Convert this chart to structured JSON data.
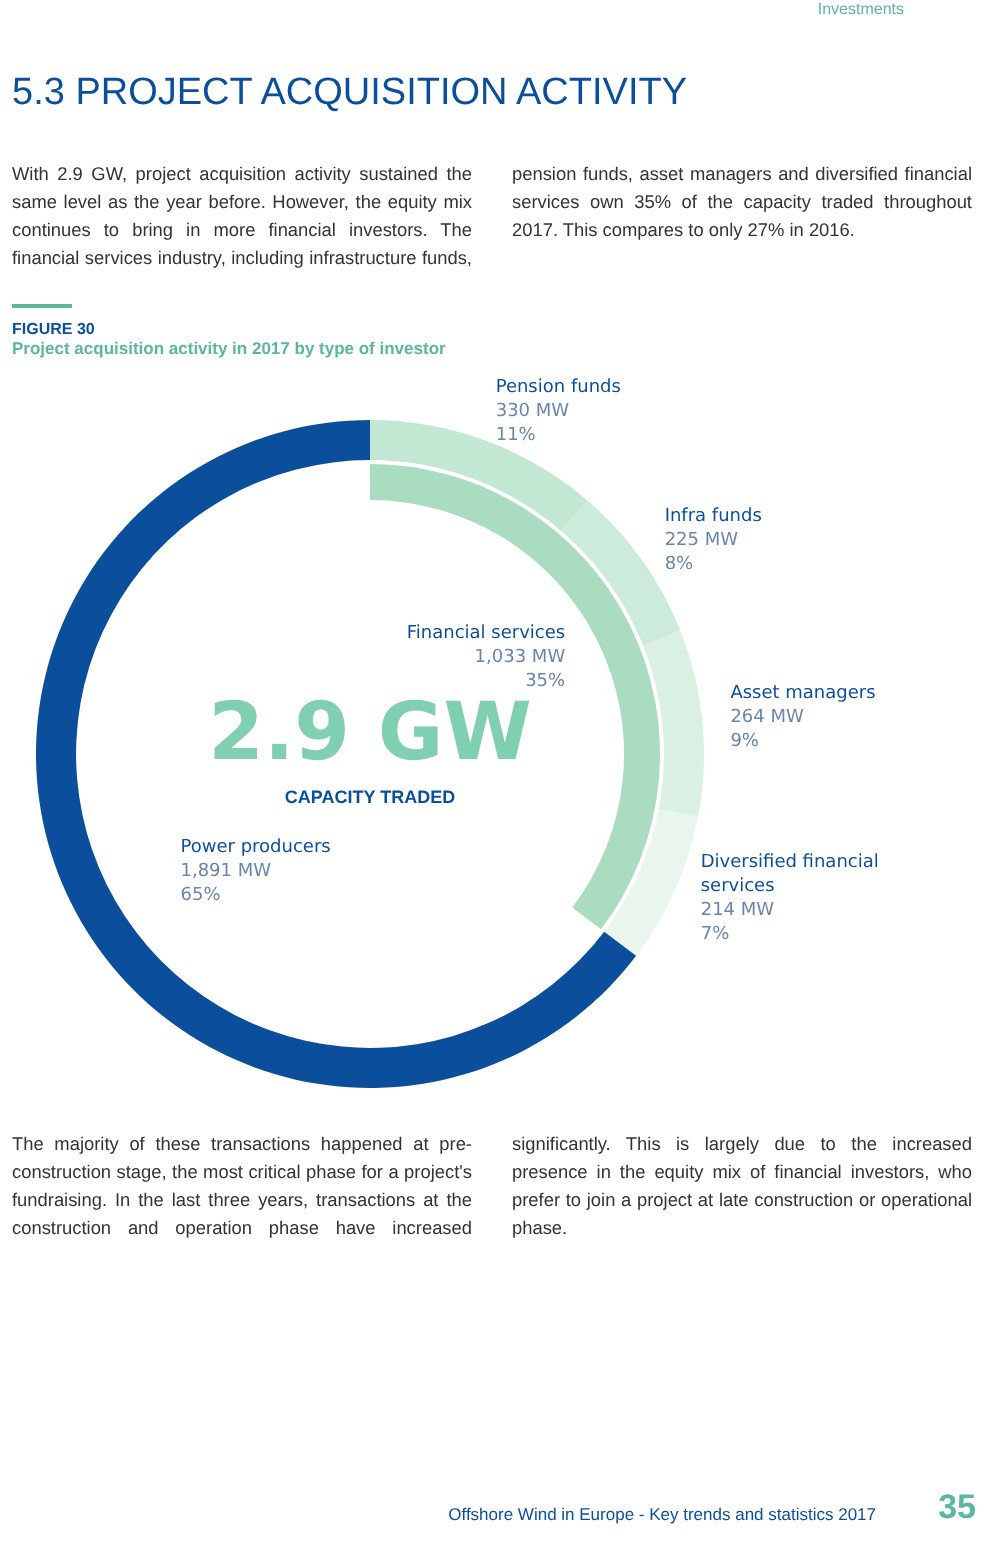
{
  "chart_data": {
    "type": "donut",
    "subtitle": "FIGURE 30",
    "title": "Project acquisition activity in 2017 by type of investor",
    "categories": [
      "Pension funds",
      "Infra funds",
      "Asset managers",
      "Diversified financial services",
      "Power producers"
    ],
    "values": [
      330,
      225,
      264,
      214,
      1891
    ],
    "value_labels": [
      "330 MW\n11%",
      "225 MW\n8%",
      "264 MW\n9%",
      "214 MW\n7%",
      "1,891 MW\n65%"
    ],
    "colors": [
      "#c2e8d3",
      "#cdebdb",
      "#d9f0e3",
      "#e8f6ee",
      "#0b4f9c"
    ],
    "legend": false,
    "annotations": [
      "2.9 GW",
      "CAPACITY TRADED",
      "Financial services",
      "1,033 MW",
      "35%",
      "Investments",
      "5.3 PROJECT ACQUISITION ACTIVITY",
      "With 2.9 GW, project acquisition activity sustained the same level as the year before. However, the equity mix continues to bring in more financial investors. The financial services industry, including infrastructure funds, pension funds, asset managers and diversified financial services own 35% of the capacity traded throughout 2017. This compares to only 27% in 2016.",
      "The majority of these transactions happened at pre-construction stage, the most critical phase for a project's fundraising. In the last three years, transactions at the construction and operation phase have increased significantly. This is largely due to the increased presence in the equity mix of financial investors, who prefer to join a project at late construction or operational phase.",
      "Offshore Wind in Europe - Key trends and statistics 2017",
      "35"
    ]
  }
}
